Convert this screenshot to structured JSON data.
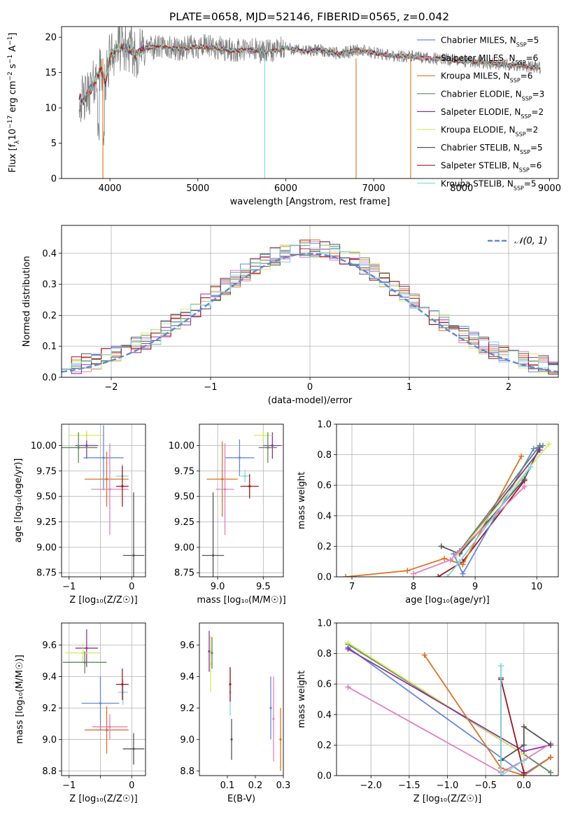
{
  "figure": {
    "title": "PLATE=0658, MJD=52146, FIBERID=0565, z=0.042"
  },
  "colors": {
    "chabrier_miles": "#6688dd",
    "salpeter_miles": "#e27fbf",
    "kroupa_miles": "#e0701e",
    "chabrier_elodie": "#5a8a5a",
    "salpeter_elodie": "#8e30a0",
    "kroupa_elodie": "#d6ec60",
    "chabrier_stelib": "#555555",
    "salpeter_stelib": "#a8101c",
    "kroupa_stelib": "#7fd6de",
    "data": "#808080",
    "normal": "#5b8ad6"
  },
  "chart_data": [
    {
      "id": "spectrum",
      "type": "line",
      "title": "PLATE=0658, MJD=52146, FIBERID=0565, z=0.042",
      "xlabel": "wavelength [Angstrom, rest frame]",
      "ylabel_parts": [
        "Flux [f",
        "λ",
        "10",
        "−17",
        " erg cm",
        "−2",
        " s",
        "−1",
        " A",
        "−1",
        "]"
      ],
      "xlim": [
        3450,
        9100
      ],
      "ylim": [
        0,
        21.5
      ],
      "xticks": [
        4000,
        5000,
        6000,
        7000,
        8000,
        9000
      ],
      "yticks": [
        0,
        5,
        10,
        15,
        20
      ],
      "legend_position": "top-right",
      "legend": [
        {
          "label": "Chabrier MILES, N",
          "sub": "SSP",
          "tail": "=5",
          "color": "#6688dd"
        },
        {
          "label": "Salpeter MILES, N",
          "sub": "SSP",
          "tail": "=6",
          "color": "#e27fbf"
        },
        {
          "label": "Kroupa MILES, N",
          "sub": "SSP",
          "tail": "=6",
          "color": "#e0701e"
        },
        {
          "label": "Chabrier ELODIE, N",
          "sub": "SSP",
          "tail": "=3",
          "color": "#5a8a5a"
        },
        {
          "label": "Salpeter ELODIE, N",
          "sub": "SSP",
          "tail": "=2",
          "color": "#8e30a0"
        },
        {
          "label": "Kroupa ELODIE, N",
          "sub": "SSP",
          "tail": "=2",
          "color": "#d6ec60"
        },
        {
          "label": "Chabrier STELIB, N",
          "sub": "SSP",
          "tail": "=5",
          "color": "#555555"
        },
        {
          "label": "Salpeter STELIB, N",
          "sub": "SSP",
          "tail": "=6",
          "color": "#a8101c"
        },
        {
          "label": "Kroupa STELIB, N",
          "sub": "SSP",
          "tail": "=5",
          "color": "#7fd6de"
        }
      ],
      "continuum": {
        "wavelength": [
          3650,
          3700,
          3800,
          3900,
          3950,
          4000,
          4100,
          4200,
          4300,
          4400,
          4600,
          4800,
          5000,
          5200,
          5400,
          5600,
          5800,
          6000,
          6200,
          6400,
          6600,
          6800,
          7000,
          7200,
          7400,
          7600,
          7800,
          8000,
          8200,
          8400,
          8600,
          8800,
          8900
        ],
        "flux": [
          11.5,
          11,
          13,
          15.5,
          13.5,
          17.5,
          18.5,
          18.5,
          17.5,
          18.5,
          18.6,
          18.3,
          18.7,
          18.5,
          18.1,
          18.2,
          17.9,
          18.5,
          18,
          18.2,
          17.6,
          18.2,
          17.8,
          17.4,
          17.3,
          17,
          16.9,
          16.6,
          16.5,
          16.2,
          16,
          15.8,
          15.6
        ]
      },
      "model_dropouts": [
        {
          "x": 3920,
          "color": "#e0701e"
        },
        {
          "x": 5760,
          "color": "#7fd6de"
        },
        {
          "x": 6800,
          "color": "#e0701e"
        },
        {
          "x": 7420,
          "color": "#e0701e"
        }
      ]
    },
    {
      "id": "residuals",
      "type": "histogram",
      "xlabel": "(data-model)/error",
      "ylabel": "Normed distribution",
      "xlim": [
        -2.5,
        2.5
      ],
      "ylim": [
        0,
        0.49
      ],
      "xticks": [
        -2,
        -1,
        0,
        1,
        2
      ],
      "xtick_labels": [
        "−2",
        "−1",
        "0",
        "1",
        "2"
      ],
      "yticks": [
        0.0,
        0.1,
        0.2,
        0.3,
        0.4
      ],
      "grid": true,
      "legend_position": "top-right",
      "legend_label": "𝒩(0, 1)",
      "bin_width": 0.1,
      "bin_range": [
        -2.5,
        2.5
      ]
    },
    {
      "id": "age-vs-z",
      "type": "scatter",
      "xlabel": "Z [log₁₀(Z/Z☉)]",
      "ylabel": "age  [log₁₀(age/yr)]",
      "xlim": [
        -1.12,
        0.22
      ],
      "ylim": [
        8.71,
        10.21
      ],
      "xticks": [
        -1,
        -0.5,
        0
      ],
      "xtick_labels": [
        "−1",
        "",
        "0"
      ],
      "yticks": [
        8.75,
        9.0,
        9.25,
        9.5,
        9.75,
        10.0
      ],
      "ytick_labels": [
        "8.75",
        "9.00",
        "9.25",
        "9.50",
        "9.75",
        "10.00"
      ],
      "grid": true,
      "points": [
        {
          "x": -0.72,
          "y": 10.0,
          "xerr": 0.18,
          "yerr": 0.13,
          "color": "#8e30a0"
        },
        {
          "x": -0.72,
          "y": 10.1,
          "xerr": 0.28,
          "yerr": 0.05,
          "color": "#d6ec60"
        },
        {
          "x": -0.85,
          "y": 9.98,
          "xerr": 0.3,
          "yerr": 0.15,
          "color": "#5a8a5a"
        },
        {
          "x": -0.45,
          "y": 9.88,
          "xerr": 0.32,
          "yerr": 0.32,
          "color": "#6688dd"
        },
        {
          "x": -0.4,
          "y": 9.67,
          "xerr": 0.35,
          "yerr": 0.27,
          "color": "#e0701e"
        },
        {
          "x": -0.35,
          "y": 9.57,
          "xerr": 0.3,
          "yerr": 0.45,
          "color": "#e27fbf"
        },
        {
          "x": -0.15,
          "y": 9.7,
          "xerr": 0.1,
          "yerr": 0.12,
          "color": "#7fd6de"
        },
        {
          "x": -0.15,
          "y": 9.6,
          "xerr": 0.1,
          "yerr": 0.2,
          "color": "#a8101c"
        },
        {
          "x": 0.03,
          "y": 8.92,
          "xerr": 0.17,
          "yerr": 0.62,
          "color": "#555555"
        }
      ]
    },
    {
      "id": "age-vs-mass",
      "type": "scatter",
      "xlabel": "mass [log₁₀(M/M☉)]",
      "ylabel": "",
      "xlim": [
        8.8,
        9.72
      ],
      "ylim": [
        8.71,
        10.21
      ],
      "xticks": [
        9.0,
        9.5
      ],
      "xtick_labels": [
        "9.0",
        "9.5"
      ],
      "yticks": [
        8.75,
        9.0,
        9.25,
        9.5,
        9.75,
        10.0
      ],
      "ytick_labels": [
        "8.75",
        "9.00",
        "9.25",
        "9.50",
        "9.75",
        "10.00"
      ],
      "grid": true,
      "points": [
        {
          "x": 9.6,
          "y": 10.0,
          "xerr": 0.1,
          "yerr": 0.13,
          "color": "#8e30a0"
        },
        {
          "x": 9.5,
          "y": 10.1,
          "xerr": 0.1,
          "yerr": 0.05,
          "color": "#d6ec60"
        },
        {
          "x": 9.55,
          "y": 9.98,
          "xerr": 0.1,
          "yerr": 0.15,
          "color": "#5a8a5a"
        },
        {
          "x": 9.24,
          "y": 9.88,
          "xerr": 0.16,
          "yerr": 0.18,
          "color": "#6688dd"
        },
        {
          "x": 9.05,
          "y": 9.67,
          "xerr": 0.17,
          "yerr": 0.37,
          "color": "#e0701e"
        },
        {
          "x": 9.08,
          "y": 9.57,
          "xerr": 0.1,
          "yerr": 0.45,
          "color": "#e27fbf"
        },
        {
          "x": 9.3,
          "y": 9.7,
          "xerr": 0.05,
          "yerr": 0.06,
          "color": "#7fd6de"
        },
        {
          "x": 9.35,
          "y": 9.6,
          "xerr": 0.1,
          "yerr": 0.12,
          "color": "#a8101c"
        },
        {
          "x": 8.95,
          "y": 8.92,
          "xerr": 0.12,
          "yerr": 0.62,
          "color": "#555555"
        }
      ]
    },
    {
      "id": "mass-weight-vs-age",
      "type": "line",
      "xlabel": "age  [log₁₀(age/yr)]",
      "ylabel": "mass weight",
      "xlim": [
        6.75,
        10.35
      ],
      "ylim": [
        0,
        1.0
      ],
      "xticks": [
        7,
        8,
        9,
        10
      ],
      "yticks": [
        0.0,
        0.2,
        0.4,
        0.6,
        0.8,
        1.0
      ],
      "grid": true,
      "series": [
        {
          "color": "#a8101c",
          "x": [
            8.4,
            8.8,
            9.8
          ],
          "y": [
            0.0,
            0.1,
            0.63
          ]
        },
        {
          "color": "#e0701e",
          "x": [
            6.9,
            7.9,
            8.5,
            8.8,
            9.75
          ],
          "y": [
            0.0,
            0.04,
            0.12,
            0.08,
            0.79
          ]
        },
        {
          "color": "#555555",
          "x": [
            8.45,
            8.75,
            9.8,
            10.05
          ],
          "y": [
            0.2,
            0.15,
            0.64,
            0.85
          ]
        },
        {
          "color": "#6688dd",
          "x": [
            8.65,
            8.8,
            9.95,
            10.1
          ],
          "y": [
            0.15,
            0.02,
            0.84,
            0.86
          ]
        },
        {
          "color": "#5a8a5a",
          "x": [
            8.75,
            10.05
          ],
          "y": [
            0.17,
            0.86
          ]
        },
        {
          "color": "#8e30a0",
          "x": [
            8.75,
            10.05
          ],
          "y": [
            0.16,
            0.83
          ]
        },
        {
          "color": "#d6ec60",
          "x": [
            8.7,
            10.2
          ],
          "y": [
            0.14,
            0.87
          ]
        },
        {
          "color": "#e27fbf",
          "x": [
            8.0,
            8.6,
            9.8
          ],
          "y": [
            0.02,
            0.11,
            0.59
          ]
        },
        {
          "color": "#7fd6de",
          "x": [
            8.55,
            8.75,
            9.9
          ],
          "y": [
            0.0,
            0.1,
            0.72
          ]
        }
      ]
    },
    {
      "id": "mass-vs-z",
      "type": "scatter",
      "xlabel": "Z [log₁₀(Z/Z☉)]",
      "ylabel": "mass [log₁₀(M/M☉)]",
      "xlim": [
        -1.12,
        0.22
      ],
      "ylim": [
        8.77,
        9.74
      ],
      "xticks": [
        -1,
        -0.5,
        0
      ],
      "xtick_labels": [
        "−1",
        "",
        "0"
      ],
      "yticks": [
        8.8,
        9.0,
        9.2,
        9.4,
        9.6
      ],
      "ytick_labels": [
        "8.8",
        "9.0",
        "9.2",
        "9.4",
        "9.6"
      ],
      "grid": true,
      "points": [
        {
          "x": -0.72,
          "y": 9.58,
          "xerr": 0.18,
          "yerr": 0.12,
          "color": "#8e30a0"
        },
        {
          "x": -0.78,
          "y": 9.55,
          "xerr": 0.28,
          "yerr": 0.06,
          "color": "#d6ec60"
        },
        {
          "x": -0.75,
          "y": 9.49,
          "xerr": 0.35,
          "yerr": 0.07,
          "color": "#5a8a5a"
        },
        {
          "x": -0.5,
          "y": 9.23,
          "xerr": 0.3,
          "yerr": 0.17,
          "color": "#6688dd"
        },
        {
          "x": -0.4,
          "y": 9.06,
          "xerr": 0.35,
          "yerr": 0.15,
          "color": "#e0701e"
        },
        {
          "x": -0.35,
          "y": 9.08,
          "xerr": 0.28,
          "yerr": 0.08,
          "color": "#e27fbf"
        },
        {
          "x": -0.14,
          "y": 9.3,
          "xerr": 0.08,
          "yerr": 0.08,
          "color": "#7fd6de"
        },
        {
          "x": -0.15,
          "y": 9.35,
          "xerr": 0.1,
          "yerr": 0.1,
          "color": "#a8101c"
        },
        {
          "x": 0.03,
          "y": 8.94,
          "xerr": 0.17,
          "yerr": 0.1,
          "color": "#555555"
        }
      ]
    },
    {
      "id": "mass-vs-ebv",
      "type": "scatter",
      "xlabel": "E(B-V)",
      "ylabel": "",
      "xlim": [
        0.0,
        0.3
      ],
      "ylim": [
        8.77,
        9.74
      ],
      "xticks": [
        0.1,
        0.2,
        0.3
      ],
      "xtick_labels": [
        "0.1",
        "0.2",
        "0.3"
      ],
      "yticks": [
        8.8,
        9.0,
        9.2,
        9.4,
        9.6
      ],
      "ytick_labels": [
        "8.8",
        "9.0",
        "9.2",
        "9.4",
        "9.6"
      ],
      "grid": false,
      "points": [
        {
          "x": 0.035,
          "y": 9.56,
          "yerr": 0.13,
          "color": "#8e30a0"
        },
        {
          "x": 0.04,
          "y": 9.48,
          "yerr": 0.18,
          "color": "#d6ec60"
        },
        {
          "x": 0.045,
          "y": 9.55,
          "yerr": 0.1,
          "color": "#5a8a5a"
        },
        {
          "x": 0.11,
          "y": 9.3,
          "yerr": 0.15,
          "color": "#7fd6de"
        },
        {
          "x": 0.11,
          "y": 9.35,
          "yerr": 0.11,
          "color": "#a8101c"
        },
        {
          "x": 0.115,
          "y": 9.0,
          "yerr": 0.13,
          "color": "#555555"
        },
        {
          "x": 0.255,
          "y": 9.2,
          "yerr": 0.2,
          "color": "#6688dd"
        },
        {
          "x": 0.265,
          "y": 9.13,
          "yerr": 0.27,
          "color": "#e27fbf"
        },
        {
          "x": 0.29,
          "y": 9.0,
          "yerr": 0.2,
          "color": "#e0701e"
        }
      ]
    },
    {
      "id": "mass-weight-vs-z",
      "type": "line",
      "xlabel": "Z [log₁₀(Z/Z☉)]",
      "ylabel": "mass weight",
      "xlim": [
        -2.45,
        0.45
      ],
      "ylim": [
        0,
        1.0
      ],
      "xticks": [
        -2.0,
        -1.5,
        -1.0,
        -0.5,
        0.0
      ],
      "xtick_labels": [
        "−2.0",
        "−1.5",
        "−1.0",
        "−0.5",
        "0.0"
      ],
      "yticks": [
        0.0,
        0.2,
        0.4,
        0.6,
        0.8,
        1.0
      ],
      "grid": true,
      "series": [
        {
          "color": "#6688dd",
          "x": [
            -2.3,
            0.0,
            0.35
          ],
          "y": [
            0.84,
            0.01,
            0.12
          ]
        },
        {
          "color": "#5a8a5a",
          "x": [
            -2.3,
            0.0,
            0.35
          ],
          "y": [
            0.86,
            0.14,
            0.02
          ]
        },
        {
          "color": "#d6ec60",
          "x": [
            -2.3,
            0.0
          ],
          "y": [
            0.87,
            0.14
          ]
        },
        {
          "color": "#8e30a0",
          "x": [
            -2.3,
            0.0,
            0.35
          ],
          "y": [
            0.83,
            0.16,
            0.2
          ]
        },
        {
          "color": "#e27fbf",
          "x": [
            -2.3,
            -0.3,
            0.0,
            0.35
          ],
          "y": [
            0.58,
            0.02,
            0.1,
            0.21
          ]
        },
        {
          "color": "#e0701e",
          "x": [
            -1.3,
            -0.3,
            0.0,
            0.35
          ],
          "y": [
            0.79,
            0.05,
            0.0,
            0.12
          ]
        },
        {
          "color": "#555555",
          "x": [
            -0.3,
            -0.3,
            0.0,
            0.0,
            0.35
          ],
          "y": [
            0.64,
            0.1,
            0.2,
            0.32,
            0.2
          ]
        },
        {
          "color": "#a8101c",
          "x": [
            -0.3,
            0.0
          ],
          "y": [
            0.63,
            0.02
          ]
        },
        {
          "color": "#7fd6de",
          "x": [
            -0.3,
            -0.3,
            0.0
          ],
          "y": [
            0.72,
            0.0,
            0.1
          ]
        }
      ]
    }
  ]
}
